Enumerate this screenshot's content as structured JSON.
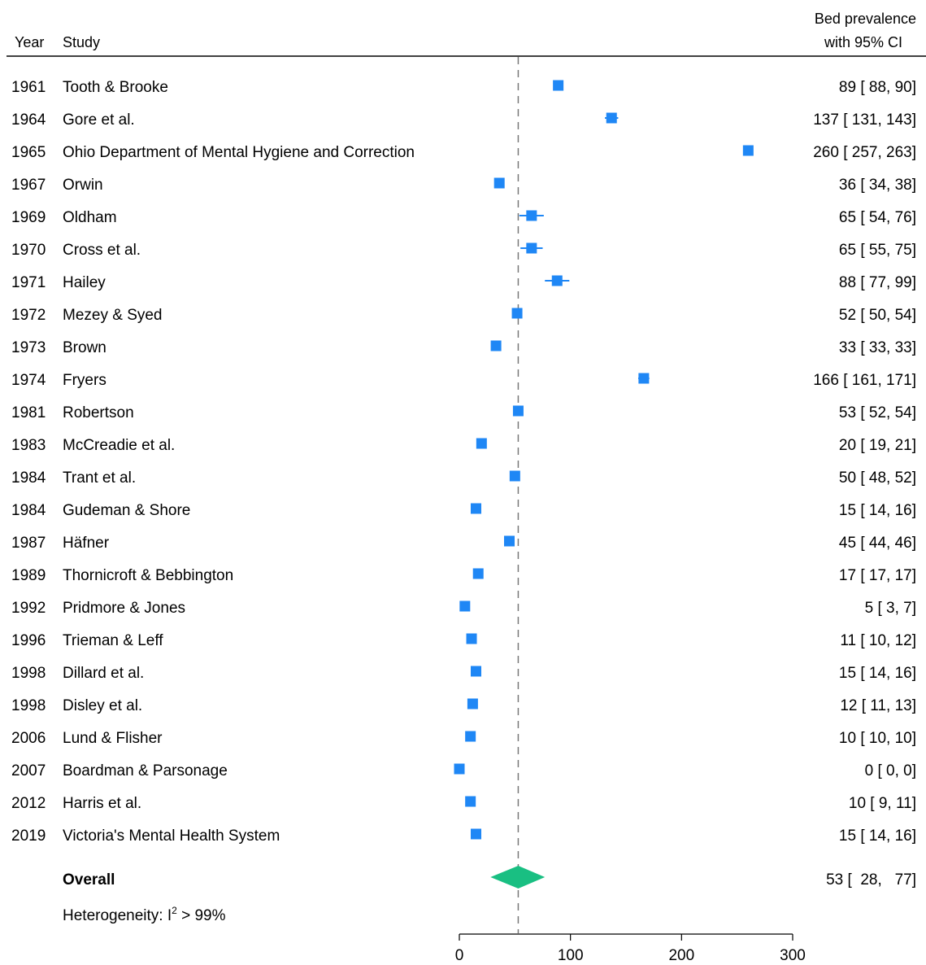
{
  "header": {
    "year_label": "Year",
    "study_label": "Study",
    "estimate_label_line1": "Bed prevalence",
    "estimate_label_line2": "with 95% CI"
  },
  "overall": {
    "label": "Overall",
    "text": "53 [  28,   77]"
  },
  "heterogeneity": {
    "prefix": "Heterogeneity: I",
    "superscript": "2",
    "suffix": " > 99%"
  },
  "colors": {
    "marker": "#1f87f5",
    "diamond": "#19bf82",
    "reference_line": "#777777"
  },
  "chart_data": {
    "type": "forest",
    "xlim": [
      0,
      300
    ],
    "xticks": [
      0,
      100,
      200,
      300
    ],
    "reference_value": 53,
    "grid": false,
    "studies": [
      {
        "year": "1961",
        "study": "Tooth & Brooke",
        "est": 89,
        "lo": 88,
        "hi": 90,
        "text": "89 [  88,   90]"
      },
      {
        "year": "1964",
        "study": "Gore et al.",
        "est": 137,
        "lo": 131,
        "hi": 143,
        "text": "137 [ 131,  143]"
      },
      {
        "year": "1965",
        "study": "Ohio Department of Mental Hygiene and Correction",
        "est": 260,
        "lo": 257,
        "hi": 263,
        "text": "260 [ 257,  263]"
      },
      {
        "year": "1967",
        "study": "Orwin",
        "est": 36,
        "lo": 34,
        "hi": 38,
        "text": "36 [  34,   38]"
      },
      {
        "year": "1969",
        "study": "Oldham",
        "est": 65,
        "lo": 54,
        "hi": 76,
        "text": "65 [  54,   76]"
      },
      {
        "year": "1970",
        "study": "Cross et al.",
        "est": 65,
        "lo": 55,
        "hi": 75,
        "text": "65 [  55,   75]"
      },
      {
        "year": "1971",
        "study": "Hailey",
        "est": 88,
        "lo": 77,
        "hi": 99,
        "text": "88 [  77,   99]"
      },
      {
        "year": "1972",
        "study": "Mezey & Syed",
        "est": 52,
        "lo": 50,
        "hi": 54,
        "text": "52 [  50,   54]"
      },
      {
        "year": "1973",
        "study": "Brown",
        "est": 33,
        "lo": 33,
        "hi": 33,
        "text": "33 [  33,   33]"
      },
      {
        "year": "1974",
        "study": "Fryers",
        "est": 166,
        "lo": 161,
        "hi": 171,
        "text": "166 [ 161,  171]"
      },
      {
        "year": "1981",
        "study": "Robertson",
        "est": 53,
        "lo": 52,
        "hi": 54,
        "text": "53 [  52,   54]"
      },
      {
        "year": "1983",
        "study": "McCreadie et al.",
        "est": 20,
        "lo": 19,
        "hi": 21,
        "text": "20 [  19,   21]"
      },
      {
        "year": "1984",
        "study": "Trant et al.",
        "est": 50,
        "lo": 48,
        "hi": 52,
        "text": "50 [  48,   52]"
      },
      {
        "year": "1984",
        "study": "Gudeman & Shore",
        "est": 15,
        "lo": 14,
        "hi": 16,
        "text": "15 [  14,   16]"
      },
      {
        "year": "1987",
        "study": "Häfner",
        "est": 45,
        "lo": 44,
        "hi": 46,
        "text": "45 [  44,   46]"
      },
      {
        "year": "1989",
        "study": "Thornicroft & Bebbington",
        "est": 17,
        "lo": 17,
        "hi": 17,
        "text": "17 [  17,   17]"
      },
      {
        "year": "1992",
        "study": "Pridmore & Jones",
        "est": 5,
        "lo": 3,
        "hi": 7,
        "text": "5 [   3,    7]"
      },
      {
        "year": "1996",
        "study": "Trieman & Leff",
        "est": 11,
        "lo": 10,
        "hi": 12,
        "text": "11 [  10,   12]"
      },
      {
        "year": "1998",
        "study": "Dillard et al.",
        "est": 15,
        "lo": 14,
        "hi": 16,
        "text": "15 [  14,   16]"
      },
      {
        "year": "1998",
        "study": "Disley et al.",
        "est": 12,
        "lo": 11,
        "hi": 13,
        "text": "12 [  11,   13]"
      },
      {
        "year": "2006",
        "study": "Lund & Flisher",
        "est": 10,
        "lo": 10,
        "hi": 10,
        "text": "10 [  10,   10]"
      },
      {
        "year": "2007",
        "study": "Boardman & Parsonage",
        "est": 0,
        "lo": 0,
        "hi": 0,
        "text": "0 [   0,    0]"
      },
      {
        "year": "2012",
        "study": "Harris et al.",
        "est": 10,
        "lo": 9,
        "hi": 11,
        "text": "10 [   9,   11]"
      },
      {
        "year": "2019",
        "study": "Victoria's Mental Health System",
        "est": 15,
        "lo": 14,
        "hi": 16,
        "text": "15 [  14,   16]"
      }
    ],
    "overall": {
      "est": 53,
      "lo": 28,
      "hi": 77
    }
  }
}
